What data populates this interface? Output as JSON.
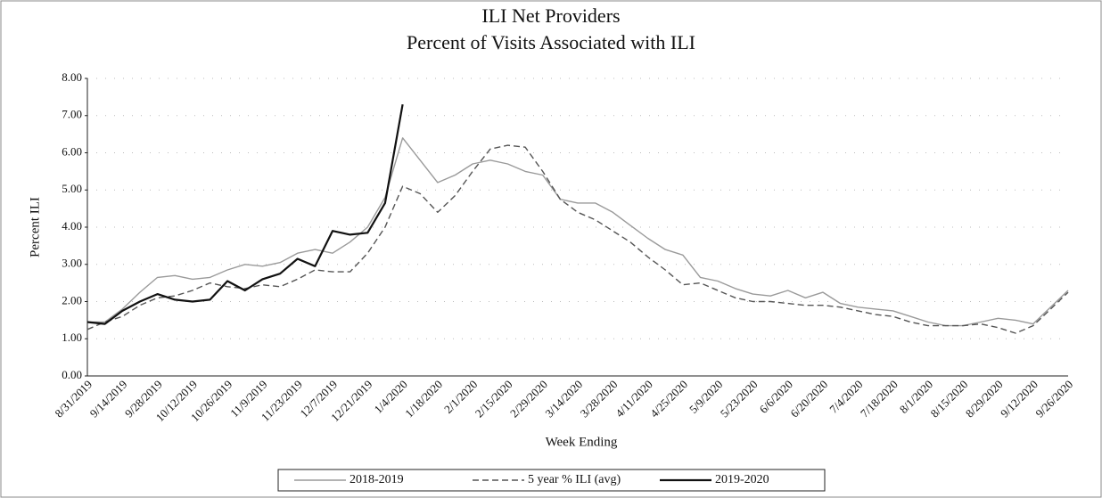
{
  "chart_data": {
    "type": "line",
    "title": "ILI Net Providers",
    "subtitle": "Percent of Visits Associated with ILI",
    "x_label": "Week Ending",
    "y_label": "Percent ILI",
    "categories": [
      "8/31/2019",
      null,
      "9/14/2019",
      null,
      "9/28/2019",
      null,
      "10/12/2019",
      null,
      "10/26/2019",
      null,
      "11/9/2019",
      null,
      "11/23/2019",
      null,
      "12/7/2019",
      null,
      "12/21/2019",
      null,
      "1/4/2020",
      null,
      "1/18/2020",
      null,
      "2/1/2020",
      null,
      "2/15/2020",
      null,
      "2/29/2020",
      null,
      "3/14/2020",
      null,
      "3/28/2020",
      null,
      "4/11/2020",
      null,
      "4/25/2020",
      null,
      "5/9/2020",
      null,
      "5/23/2020",
      null,
      "6/6/2020",
      null,
      "6/20/2020",
      null,
      "7/4/2020",
      null,
      "7/18/2020",
      null,
      "8/1/2020",
      null,
      "8/15/2020",
      null,
      "8/29/2020",
      null,
      "9/12/2020",
      null,
      "9/26/2020"
    ],
    "ylim": [
      0,
      8
    ],
    "yticks": [
      {
        "value": 0,
        "label": "0.00"
      },
      {
        "value": 1,
        "label": "1.00"
      },
      {
        "value": 2,
        "label": "2.00"
      },
      {
        "value": 3,
        "label": "3.00"
      },
      {
        "value": 4,
        "label": "4.00"
      },
      {
        "value": 5,
        "label": "5.00"
      },
      {
        "value": 6,
        "label": "6.00"
      },
      {
        "value": 7,
        "label": "7.00"
      },
      {
        "value": 8,
        "label": "8.00"
      }
    ],
    "grid": true,
    "legend": "bottom",
    "series": [
      {
        "name": "2018-2019",
        "color": "#9a9a9a",
        "dash": "solid",
        "width": 1.4,
        "values": [
          1.45,
          1.45,
          1.8,
          2.25,
          2.65,
          2.7,
          2.6,
          2.65,
          2.85,
          3.0,
          2.95,
          3.05,
          3.3,
          3.4,
          3.3,
          3.6,
          4.0,
          4.8,
          6.4,
          5.8,
          5.2,
          5.4,
          5.7,
          5.8,
          5.7,
          5.5,
          5.4,
          4.75,
          4.65,
          4.65,
          4.4,
          4.05,
          3.7,
          3.4,
          3.25,
          2.65,
          2.55,
          2.35,
          2.2,
          2.15,
          2.3,
          2.1,
          2.25,
          1.95,
          1.85,
          1.8,
          1.75,
          1.6,
          1.45,
          1.35,
          1.35,
          1.45,
          1.55,
          1.5,
          1.4,
          1.85,
          2.3
        ]
      },
      {
        "name": "5 year % ILI (avg)",
        "color": "#555555",
        "dash": "dashed",
        "width": 1.4,
        "values": [
          1.25,
          1.45,
          1.6,
          1.9,
          2.1,
          2.15,
          2.3,
          2.5,
          2.4,
          2.35,
          2.45,
          2.4,
          2.6,
          2.85,
          2.8,
          2.8,
          3.3,
          4.0,
          5.1,
          4.9,
          4.4,
          4.85,
          5.5,
          6.1,
          6.2,
          6.15,
          5.5,
          4.75,
          4.4,
          4.2,
          3.9,
          3.6,
          3.2,
          2.85,
          2.45,
          2.5,
          2.3,
          2.1,
          2.0,
          2.0,
          1.95,
          1.9,
          1.9,
          1.85,
          1.75,
          1.65,
          1.6,
          1.45,
          1.35,
          1.35,
          1.35,
          1.4,
          1.3,
          1.15,
          1.35,
          1.8,
          2.25
        ]
      },
      {
        "name": "2019-2020",
        "color": "#111111",
        "dash": "solid",
        "width": 2.2,
        "values": [
          1.45,
          1.4,
          1.75,
          2.0,
          2.2,
          2.05,
          2.0,
          2.05,
          2.55,
          2.3,
          2.6,
          2.75,
          3.15,
          2.95,
          3.9,
          3.8,
          3.85,
          4.65,
          7.3,
          null,
          null,
          null,
          null,
          null,
          null,
          null,
          null,
          null,
          null,
          null,
          null,
          null,
          null,
          null,
          null,
          null,
          null,
          null,
          null,
          null,
          null,
          null,
          null,
          null,
          null,
          null,
          null,
          null,
          null,
          null,
          null,
          null,
          null,
          null,
          null,
          null,
          null
        ]
      }
    ]
  }
}
